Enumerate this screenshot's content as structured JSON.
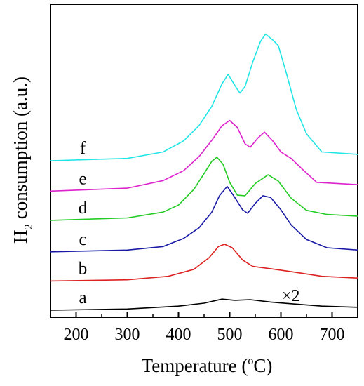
{
  "chart_data": {
    "type": "line",
    "xlabel_main": "Temperature (",
    "xlabel_sup": "o",
    "xlabel_end": "C)",
    "ylabel_main": "H",
    "ylabel_sub": "2",
    "ylabel_end": " consumption (a.u.)",
    "xlim": [
      150,
      750
    ],
    "x_ticks": [
      200,
      300,
      400,
      500,
      600,
      700
    ],
    "y_ticks_labeled": false,
    "annotation": "×2",
    "series": [
      {
        "name": "a",
        "color": "#000000",
        "points": [
          [
            150,
            0.0
          ],
          [
            300,
            0.2
          ],
          [
            400,
            0.7
          ],
          [
            450,
            1.2
          ],
          [
            485,
            1.9
          ],
          [
            510,
            1.7
          ],
          [
            540,
            1.8
          ],
          [
            580,
            1.4
          ],
          [
            620,
            1.1
          ],
          [
            680,
            0.7
          ],
          [
            750,
            0.5
          ]
        ]
      },
      {
        "name": "b",
        "color": "#dd2222",
        "points": [
          [
            150,
            5.0
          ],
          [
            300,
            5.2
          ],
          [
            380,
            5.8
          ],
          [
            430,
            7.0
          ],
          [
            460,
            9.0
          ],
          [
            478,
            10.9
          ],
          [
            490,
            11.3
          ],
          [
            505,
            10.7
          ],
          [
            525,
            8.6
          ],
          [
            545,
            7.5
          ],
          [
            580,
            7.1
          ],
          [
            620,
            6.6
          ],
          [
            680,
            5.8
          ],
          [
            750,
            5.5
          ]
        ]
      },
      {
        "name": "c",
        "color": "#1a1aa8",
        "points": [
          [
            150,
            10.0
          ],
          [
            300,
            10.3
          ],
          [
            370,
            10.9
          ],
          [
            410,
            12.3
          ],
          [
            440,
            14.1
          ],
          [
            465,
            16.8
          ],
          [
            480,
            19.6
          ],
          [
            495,
            21.2
          ],
          [
            510,
            19.3
          ],
          [
            525,
            17.2
          ],
          [
            535,
            16.6
          ],
          [
            550,
            18.3
          ],
          [
            565,
            19.6
          ],
          [
            580,
            19.3
          ],
          [
            600,
            17.2
          ],
          [
            620,
            14.6
          ],
          [
            650,
            12.1
          ],
          [
            690,
            10.7
          ],
          [
            750,
            10.3
          ]
        ]
      },
      {
        "name": "d",
        "color": "#22cc22",
        "points": [
          [
            150,
            15.4
          ],
          [
            300,
            15.8
          ],
          [
            370,
            16.8
          ],
          [
            400,
            18.0
          ],
          [
            430,
            20.7
          ],
          [
            450,
            23.4
          ],
          [
            465,
            25.5
          ],
          [
            475,
            26.2
          ],
          [
            487,
            25.0
          ],
          [
            500,
            21.9
          ],
          [
            515,
            19.7
          ],
          [
            530,
            19.6
          ],
          [
            550,
            21.7
          ],
          [
            575,
            23.2
          ],
          [
            595,
            22.1
          ],
          [
            620,
            19.2
          ],
          [
            650,
            17.1
          ],
          [
            690,
            16.4
          ],
          [
            750,
            16.1
          ]
        ]
      },
      {
        "name": "e",
        "color": "#dd22cc",
        "points": [
          [
            150,
            20.4
          ],
          [
            300,
            20.9
          ],
          [
            370,
            22.2
          ],
          [
            410,
            23.9
          ],
          [
            440,
            26.3
          ],
          [
            465,
            29.1
          ],
          [
            485,
            31.6
          ],
          [
            500,
            32.5
          ],
          [
            515,
            31.3
          ],
          [
            530,
            28.5
          ],
          [
            540,
            27.9
          ],
          [
            555,
            29.5
          ],
          [
            568,
            30.5
          ],
          [
            585,
            28.9
          ],
          [
            600,
            27.1
          ],
          [
            620,
            26.0
          ],
          [
            645,
            23.9
          ],
          [
            670,
            21.9
          ],
          [
            750,
            21.5
          ]
        ]
      },
      {
        "name": "f",
        "color": "#22e6e6",
        "points": [
          [
            150,
            25.6
          ],
          [
            300,
            26.0
          ],
          [
            370,
            27.1
          ],
          [
            410,
            29.0
          ],
          [
            440,
            31.6
          ],
          [
            465,
            34.9
          ],
          [
            485,
            38.8
          ],
          [
            497,
            40.4
          ],
          [
            510,
            38.5
          ],
          [
            520,
            37.2
          ],
          [
            530,
            38.3
          ],
          [
            545,
            42.5
          ],
          [
            560,
            46.0
          ],
          [
            570,
            47.3
          ],
          [
            585,
            46.2
          ],
          [
            595,
            45.3
          ],
          [
            610,
            40.8
          ],
          [
            630,
            34.4
          ],
          [
            650,
            30.2
          ],
          [
            680,
            27.1
          ],
          [
            750,
            26.7
          ]
        ]
      }
    ]
  }
}
